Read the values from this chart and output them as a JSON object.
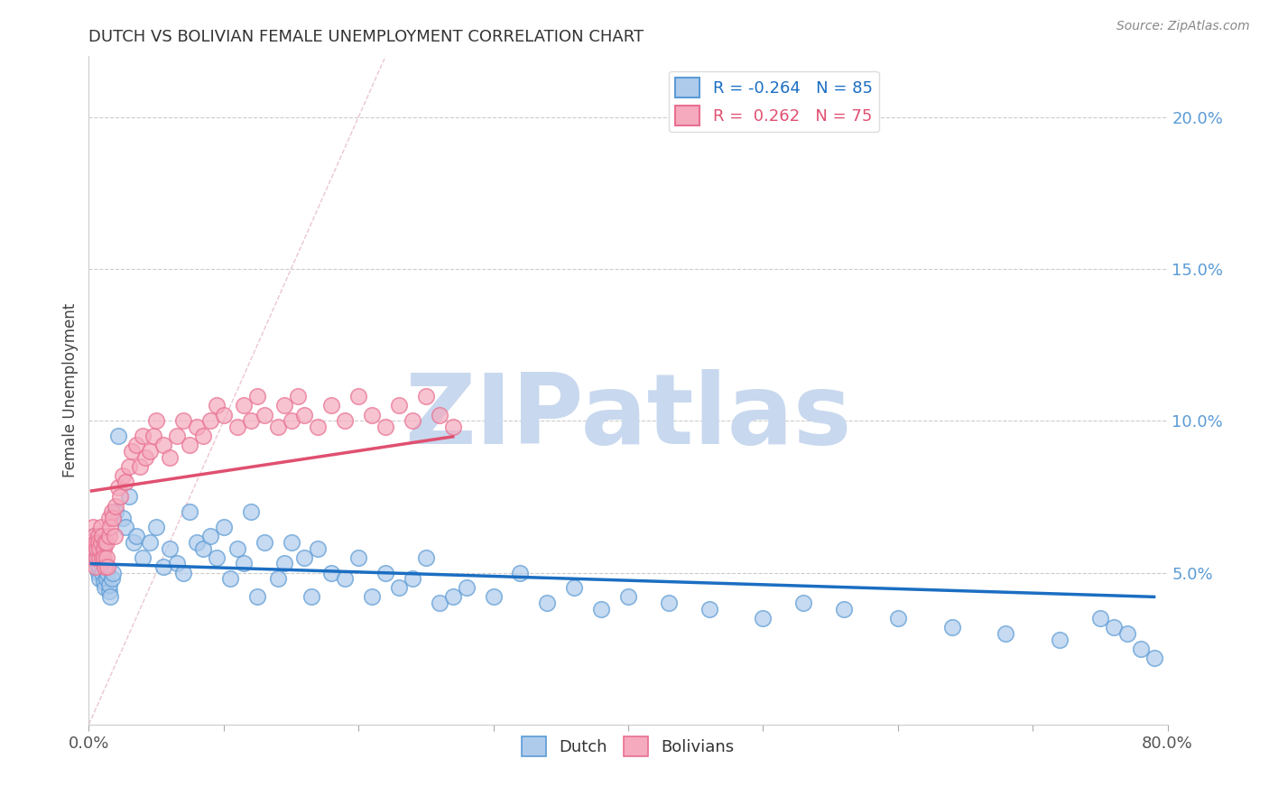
{
  "title": "DUTCH VS BOLIVIAN FEMALE UNEMPLOYMENT CORRELATION CHART",
  "source_text": "Source: ZipAtlas.com",
  "ylabel": "Female Unemployment",
  "xlim": [
    0.0,
    0.8
  ],
  "ylim": [
    0.0,
    0.22
  ],
  "ytick_positions_right": [
    0.05,
    0.1,
    0.15,
    0.2
  ],
  "ytick_labels_right": [
    "5.0%",
    "10.0%",
    "15.0%",
    "20.0%"
  ],
  "dutch_R": -0.264,
  "dutch_N": 85,
  "bolivian_R": 0.262,
  "bolivian_N": 75,
  "dutch_color": "#AECBEC",
  "bolivian_color": "#F5AABE",
  "dutch_edge_color": "#5B9BD5",
  "bolivian_edge_color": "#E87090",
  "dutch_trend_color": "#1B6EC2",
  "bolivian_trend_color": "#E05070",
  "watermark_text": "ZIPatlas",
  "watermark_color": "#C8D8EE",
  "background_color": "#FFFFFF",
  "dutch_x": [
    0.002,
    0.003,
    0.004,
    0.005,
    0.005,
    0.006,
    0.007,
    0.008,
    0.008,
    0.009,
    0.01,
    0.01,
    0.011,
    0.012,
    0.012,
    0.013,
    0.014,
    0.015,
    0.015,
    0.016,
    0.017,
    0.018,
    0.02,
    0.022,
    0.025,
    0.027,
    0.03,
    0.033,
    0.035,
    0.04,
    0.045,
    0.05,
    0.055,
    0.06,
    0.065,
    0.07,
    0.075,
    0.08,
    0.085,
    0.09,
    0.095,
    0.1,
    0.105,
    0.11,
    0.115,
    0.12,
    0.125,
    0.13,
    0.14,
    0.145,
    0.15,
    0.16,
    0.165,
    0.17,
    0.18,
    0.19,
    0.2,
    0.21,
    0.22,
    0.23,
    0.24,
    0.25,
    0.26,
    0.27,
    0.28,
    0.3,
    0.32,
    0.34,
    0.36,
    0.38,
    0.4,
    0.43,
    0.46,
    0.5,
    0.53,
    0.56,
    0.6,
    0.64,
    0.68,
    0.72,
    0.75,
    0.76,
    0.77,
    0.78,
    0.79
  ],
  "dutch_y": [
    0.06,
    0.058,
    0.062,
    0.055,
    0.057,
    0.053,
    0.05,
    0.048,
    0.052,
    0.055,
    0.05,
    0.06,
    0.047,
    0.052,
    0.045,
    0.048,
    0.05,
    0.044,
    0.046,
    0.042,
    0.048,
    0.05,
    0.07,
    0.095,
    0.068,
    0.065,
    0.075,
    0.06,
    0.062,
    0.055,
    0.06,
    0.065,
    0.052,
    0.058,
    0.053,
    0.05,
    0.07,
    0.06,
    0.058,
    0.062,
    0.055,
    0.065,
    0.048,
    0.058,
    0.053,
    0.07,
    0.042,
    0.06,
    0.048,
    0.053,
    0.06,
    0.055,
    0.042,
    0.058,
    0.05,
    0.048,
    0.055,
    0.042,
    0.05,
    0.045,
    0.048,
    0.055,
    0.04,
    0.042,
    0.045,
    0.042,
    0.05,
    0.04,
    0.045,
    0.038,
    0.042,
    0.04,
    0.038,
    0.035,
    0.04,
    0.038,
    0.035,
    0.032,
    0.03,
    0.028,
    0.035,
    0.032,
    0.03,
    0.025,
    0.022
  ],
  "bolivian_x": [
    0.002,
    0.003,
    0.003,
    0.004,
    0.004,
    0.005,
    0.005,
    0.006,
    0.006,
    0.007,
    0.007,
    0.008,
    0.008,
    0.009,
    0.009,
    0.01,
    0.01,
    0.011,
    0.011,
    0.012,
    0.012,
    0.013,
    0.013,
    0.014,
    0.015,
    0.015,
    0.016,
    0.017,
    0.018,
    0.019,
    0.02,
    0.022,
    0.023,
    0.025,
    0.027,
    0.03,
    0.032,
    0.035,
    0.038,
    0.04,
    0.042,
    0.045,
    0.048,
    0.05,
    0.055,
    0.06,
    0.065,
    0.07,
    0.075,
    0.08,
    0.085,
    0.09,
    0.095,
    0.1,
    0.11,
    0.115,
    0.12,
    0.125,
    0.13,
    0.14,
    0.145,
    0.15,
    0.155,
    0.16,
    0.17,
    0.18,
    0.19,
    0.2,
    0.21,
    0.22,
    0.23,
    0.24,
    0.25,
    0.26,
    0.27
  ],
  "bolivian_y": [
    0.06,
    0.055,
    0.065,
    0.062,
    0.058,
    0.052,
    0.06,
    0.055,
    0.058,
    0.062,
    0.06,
    0.055,
    0.058,
    0.06,
    0.065,
    0.055,
    0.062,
    0.058,
    0.055,
    0.052,
    0.06,
    0.055,
    0.06,
    0.052,
    0.062,
    0.068,
    0.065,
    0.07,
    0.068,
    0.062,
    0.072,
    0.078,
    0.075,
    0.082,
    0.08,
    0.085,
    0.09,
    0.092,
    0.085,
    0.095,
    0.088,
    0.09,
    0.095,
    0.1,
    0.092,
    0.088,
    0.095,
    0.1,
    0.092,
    0.098,
    0.095,
    0.1,
    0.105,
    0.102,
    0.098,
    0.105,
    0.1,
    0.108,
    0.102,
    0.098,
    0.105,
    0.1,
    0.108,
    0.102,
    0.098,
    0.105,
    0.1,
    0.108,
    0.102,
    0.098,
    0.105,
    0.1,
    0.108,
    0.102,
    0.098
  ]
}
